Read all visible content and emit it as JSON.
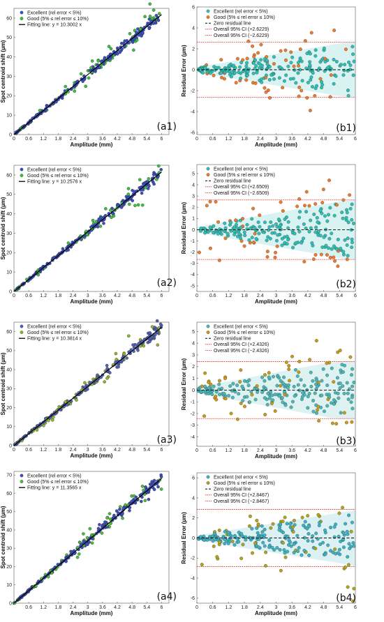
{
  "chart_data": [
    {
      "type": "scatter",
      "panel": "a1",
      "label": "(a1)",
      "xlabel": "Amplitude (mm)",
      "ylabel": "Spot centroid shift (µm)",
      "xlim": [
        0,
        6.3
      ],
      "ylim": [
        0,
        65
      ],
      "xticks": [
        "0",
        "0.6",
        "1.2",
        "1.8",
        "2.4",
        "3",
        "3.6",
        "4.2",
        "4.8",
        "5.4",
        "6"
      ],
      "xtick_values": [
        0,
        0.6,
        1.2,
        1.8,
        2.4,
        3,
        3.6,
        4.2,
        4.8,
        5.4,
        6
      ],
      "yticks": [
        "0",
        "10",
        "20",
        "30",
        "40",
        "50",
        "60"
      ],
      "ytick_values": [
        0,
        10,
        20,
        30,
        40,
        50,
        60
      ],
      "slope": 10.3002,
      "legend": [
        "Excellent (rel error < 5%)",
        "Good (5% ≤ rel error ≤ 10%)",
        "Fitting line: y = 10.3002 x"
      ],
      "series": [
        {
          "name": "Excellent (rel error < 5%)",
          "color": "#3a4fc4"
        },
        {
          "name": "Good (5% ≤ rel error ≤ 10%)",
          "color": "#39c33d"
        },
        {
          "name": "Fitting line: y = 10.3002 x",
          "color": "#000000"
        }
      ]
    },
    {
      "type": "scatter",
      "panel": "b1",
      "label": "(b1)",
      "xlabel": "Amplitude (mm)",
      "ylabel": "Residual Error (µm)",
      "xlim": [
        0,
        6
      ],
      "ylim": [
        -6.2,
        6
      ],
      "xticks": [
        "0",
        "0.6",
        "1.2",
        "1.8",
        "2.4",
        "3",
        "3.6",
        "4.2",
        "4.8",
        "5.4",
        "6"
      ],
      "xtick_values": [
        0,
        0.6,
        1.2,
        1.8,
        2.4,
        3,
        3.6,
        4.2,
        4.8,
        5.4,
        6
      ],
      "yticks": [
        "-6",
        "-4",
        "-2",
        "0",
        "2",
        "4",
        "6"
      ],
      "ytick_values": [
        -6,
        -4,
        -2,
        0,
        2,
        4,
        6
      ],
      "ci": 2.6229,
      "legend": [
        "Excellent (rel error < 5%)",
        "Good (5% ≤ rel error ≤ 10%)",
        "Zero residual line",
        "Overall 95% CI (+2.6229)",
        "Overall 95% CI (−2.6229)"
      ],
      "series": [
        {
          "name": "Excellent (rel error < 5%)",
          "color": "#2ebfb5"
        },
        {
          "name": "Good (5% ≤ rel error ≤ 10%)",
          "color": "#ee7a2e"
        }
      ]
    },
    {
      "type": "scatter",
      "panel": "a2",
      "label": "(a2)",
      "xlabel": "Amplitude (mm)",
      "ylabel": "Spot centroid shift (µm)",
      "xlim": [
        0,
        6.3
      ],
      "ylim": [
        0,
        65
      ],
      "xticks": [
        "0",
        "0.6",
        "1.2",
        "1.8",
        "2.4",
        "3",
        "3.6",
        "4.2",
        "4.8",
        "5.4",
        "6"
      ],
      "xtick_values": [
        0,
        0.6,
        1.2,
        1.8,
        2.4,
        3,
        3.6,
        4.2,
        4.8,
        5.4,
        6
      ],
      "yticks": [
        "0",
        "10",
        "20",
        "30",
        "40",
        "50",
        "60"
      ],
      "ytick_values": [
        0,
        10,
        20,
        30,
        40,
        50,
        60
      ],
      "slope": 10.2576,
      "legend": [
        "Excellent (rel error < 5%)",
        "Good (5% ≤ rel error ≤ 10%)",
        "Fitting line: y = 10.2576 x"
      ],
      "series": [
        {
          "name": "Excellent (rel error < 5%)",
          "color": "#3a4fc4"
        },
        {
          "name": "Good (5% ≤ rel error ≤ 10%)",
          "color": "#39c33d"
        },
        {
          "name": "Fitting line: y = 10.2576 x",
          "color": "#000000"
        }
      ]
    },
    {
      "type": "scatter",
      "panel": "b2",
      "label": "(b2)",
      "xlabel": "Amplitude (mm)",
      "ylabel": "Residual Error (µm)",
      "xlim": [
        0,
        6
      ],
      "ylim": [
        -5.5,
        5.8
      ],
      "xticks": [
        "0",
        "0.6",
        "1.2",
        "1.8",
        "2.4",
        "3",
        "3.6",
        "4.2",
        "4.8",
        "5.4",
        "6"
      ],
      "xtick_values": [
        0,
        0.6,
        1.2,
        1.8,
        2.4,
        3,
        3.6,
        4.2,
        4.8,
        5.4,
        6
      ],
      "yticks": [
        "-5",
        "-4",
        "-3",
        "-2",
        "-1",
        "0",
        "1",
        "2",
        "3",
        "4",
        "5"
      ],
      "ytick_values": [
        -5,
        -4,
        -3,
        -2,
        -1,
        0,
        1,
        2,
        3,
        4,
        5
      ],
      "ci": 2.6509,
      "legend": [
        "Excellent (rel error < 5%)",
        "Good (5% ≤ rel error ≤ 10%)",
        "Zero residual line",
        "Overall 95% CI (+2.6509)",
        "Overall 95% CI (−2.6509)"
      ],
      "series": [
        {
          "name": "Excellent (rel error < 5%)",
          "color": "#2ebfb5"
        },
        {
          "name": "Good (5% ≤ rel error ≤ 10%)",
          "color": "#ee7a2e"
        }
      ]
    },
    {
      "type": "scatter",
      "panel": "a3",
      "label": "(a3)",
      "xlabel": "Amplitude (mm)",
      "ylabel": "Spot centroid shift (µm)",
      "xlim": [
        0,
        6.3
      ],
      "ylim": [
        0,
        65
      ],
      "xticks": [
        "0",
        "0.6",
        "1.2",
        "1.8",
        "2.4",
        "3",
        "3.6",
        "4.2",
        "4.8",
        "5.4",
        "6"
      ],
      "xtick_values": [
        0,
        0.6,
        1.2,
        1.8,
        2.4,
        3,
        3.6,
        4.2,
        4.8,
        5.4,
        6
      ],
      "yticks": [
        "0",
        "10",
        "20",
        "30",
        "40",
        "50",
        "60"
      ],
      "ytick_values": [
        0,
        10,
        20,
        30,
        40,
        50,
        60
      ],
      "slope": 10.3814,
      "legend": [
        "Excellent (rel error < 5%)",
        "Good (5% ≤ rel error ≤ 10%)",
        "Fitting line: y = 10.3814 x"
      ],
      "series": [
        {
          "name": "Excellent (rel error < 5%)",
          "color": "#5462b3"
        },
        {
          "name": "Good (5% ≤ rel error ≤ 10%)",
          "color": "#8fb52d"
        },
        {
          "name": "Fitting line: y = 10.3814 x",
          "color": "#000000"
        }
      ]
    },
    {
      "type": "scatter",
      "panel": "b3",
      "label": "(b3)",
      "xlabel": "Amplitude (mm)",
      "ylabel": "Residual Error (µm)",
      "xlim": [
        0,
        6
      ],
      "ylim": [
        -4.8,
        5.8
      ],
      "xticks": [
        "0",
        "0.6",
        "1.2",
        "1.8",
        "2.4",
        "3",
        "3.6",
        "4.2",
        "4.8",
        "5.4",
        "6"
      ],
      "xtick_values": [
        0,
        0.6,
        1.2,
        1.8,
        2.4,
        3,
        3.6,
        4.2,
        4.8,
        5.4,
        6
      ],
      "yticks": [
        "-4",
        "-3",
        "-2",
        "-1",
        "0",
        "1",
        "2",
        "3",
        "4",
        "5"
      ],
      "ytick_values": [
        -4,
        -3,
        -2,
        -1,
        0,
        1,
        2,
        3,
        4,
        5
      ],
      "ci": 2.4326,
      "legend": [
        "Excellent (rel error < 5%)",
        "Good (5% ≤ rel error ≤ 10%)",
        "Zero residual line",
        "Overall 95% CI (+2.4326)",
        "Overall 95% CI (−2.4326)"
      ],
      "series": [
        {
          "name": "Excellent (rel error < 5%)",
          "color": "#49b8b8"
        },
        {
          "name": "Good (5% ≤ rel error ≤ 10%)",
          "color": "#c89a18"
        }
      ]
    },
    {
      "type": "scatter",
      "panel": "a4",
      "label": "(a4)",
      "xlabel": "Amplitude (mm)",
      "ylabel": "Spot centroid shift (µm)",
      "xlim": [
        0,
        6.3
      ],
      "ylim": [
        0,
        72
      ],
      "xticks": [
        "0.6",
        "1.2",
        "1.8",
        "2.4",
        "3",
        "3.6",
        "4.2",
        "4.8",
        "5.4",
        "6"
      ],
      "xtick_values": [
        0.6,
        1.2,
        1.8,
        2.4,
        3,
        3.6,
        4.2,
        4.8,
        5.4,
        6
      ],
      "yticks": [
        "0",
        "10",
        "20",
        "30",
        "40",
        "50",
        "60",
        "70"
      ],
      "ytick_values": [
        0,
        10,
        20,
        30,
        40,
        50,
        60,
        70
      ],
      "slope": 11.3565,
      "legend": [
        "Excellent (rel error < 5%)",
        "Good (5% ≤ rel error ≤ 10%)",
        "Fitting line: y = 11.3565 x"
      ],
      "series": [
        {
          "name": "Excellent (rel error < 5%)",
          "color": "#3b4ec2"
        },
        {
          "name": "Good (5% ≤ rel error ≤ 10%)",
          "color": "#4cbf3a"
        },
        {
          "name": "Fitting line: y = 11.3565 x",
          "color": "#000000"
        }
      ]
    },
    {
      "type": "scatter",
      "panel": "b4",
      "label": "(b4)",
      "xlabel": "Amplitude (mm)",
      "ylabel": "Residual Error (µm)",
      "xlim": [
        0,
        6
      ],
      "ylim": [
        -6.5,
        6.5
      ],
      "xticks": [
        "0",
        "0.6",
        "1.2",
        "1.8",
        "2.4",
        "3",
        "3.6",
        "4.2",
        "4.8",
        "5.4",
        "6"
      ],
      "xtick_values": [
        0,
        0.6,
        1.2,
        1.8,
        2.4,
        3,
        3.6,
        4.2,
        4.8,
        5.4,
        6
      ],
      "yticks": [
        "-6",
        "-4",
        "-2",
        "0",
        "2",
        "4",
        "6"
      ],
      "ytick_values": [
        -6,
        -4,
        -2,
        0,
        2,
        4,
        6
      ],
      "ci": 2.8467,
      "legend": [
        "Excellent (rel error < 5%)",
        "Good (5% ≤ rel error ≤ 10%)",
        "Zero residual line",
        "Overall 95% CI (+2.8467)",
        "Overall 95% CI (−2.8467)"
      ],
      "series": [
        {
          "name": "Excellent (rel error < 5%)",
          "color": "#3cb3c2"
        },
        {
          "name": "Good (5% ≤ rel error ≤ 10%)",
          "color": "#b2a21c"
        }
      ]
    }
  ]
}
